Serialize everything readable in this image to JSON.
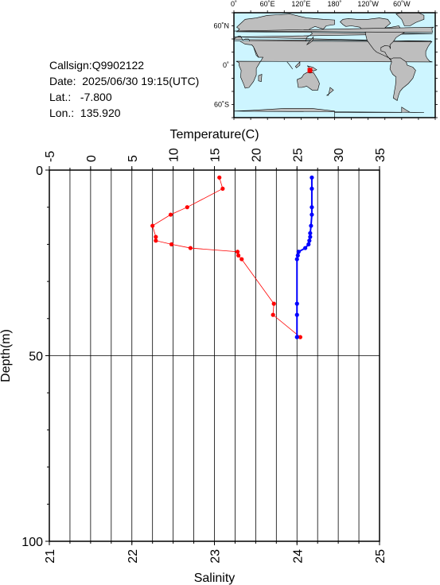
{
  "info": {
    "callsign": "Callsign:Q9902122",
    "date_label": "Date:",
    "date_value": "2025/06/30 19:15(UTC)",
    "lat_label": "Lat.:",
    "lat_value": "-7.800",
    "lon_label": "Lon.:",
    "lon_value": "135.920"
  },
  "map": {
    "top_labels": [
      "0˚",
      "60˚E",
      "120˚E",
      "180˚",
      "120˚W",
      "60˚W"
    ],
    "left_labels": [
      "60˚N",
      "0˚",
      "60˚S"
    ],
    "ocean_color": "#cdf5ff",
    "land_color": "#bebebe",
    "marker_color": "#ff0000",
    "marker": {
      "lon": 135.92,
      "lat": -7.8
    }
  },
  "chart_data": {
    "type": "line",
    "temperature_axis": {
      "label": "Temperature(C)",
      "range": [
        -5,
        35
      ],
      "ticks": [
        "-5",
        "0",
        "5",
        "10",
        "15",
        "20",
        "25",
        "30",
        "35"
      ]
    },
    "salinity_axis": {
      "label": "Salinity",
      "range": [
        21,
        25
      ],
      "ticks": [
        "21",
        "22",
        "23",
        "24",
        "25"
      ]
    },
    "depth_axis": {
      "label": "Depth(m)",
      "range": [
        0,
        100
      ],
      "ticks": [
        "0",
        "50",
        "100"
      ],
      "inverted": true
    },
    "grid": true,
    "series": [
      {
        "color": "#ff0000",
        "axis": "temperature",
        "depth": [
          2,
          5,
          10,
          12,
          15,
          18,
          19,
          20,
          21,
          22,
          23,
          24,
          36,
          39,
          45
        ],
        "values": [
          15.6,
          16.0,
          11.7,
          9.7,
          7.5,
          7.9,
          7.9,
          9.8,
          12.1,
          17.8,
          17.9,
          18.3,
          22.2,
          22.1,
          25.4
        ]
      },
      {
        "color": "#0000ff",
        "axis": "salinity",
        "depth": [
          2,
          5,
          10,
          12,
          15,
          17,
          18,
          19,
          20,
          21,
          22,
          23,
          24,
          36,
          39,
          45
        ],
        "values": [
          24.18,
          24.18,
          24.18,
          24.18,
          24.17,
          24.16,
          24.16,
          24.15,
          24.14,
          24.1,
          24.02,
          24.01,
          24.0,
          24.0,
          24.0,
          24.0
        ]
      }
    ]
  }
}
